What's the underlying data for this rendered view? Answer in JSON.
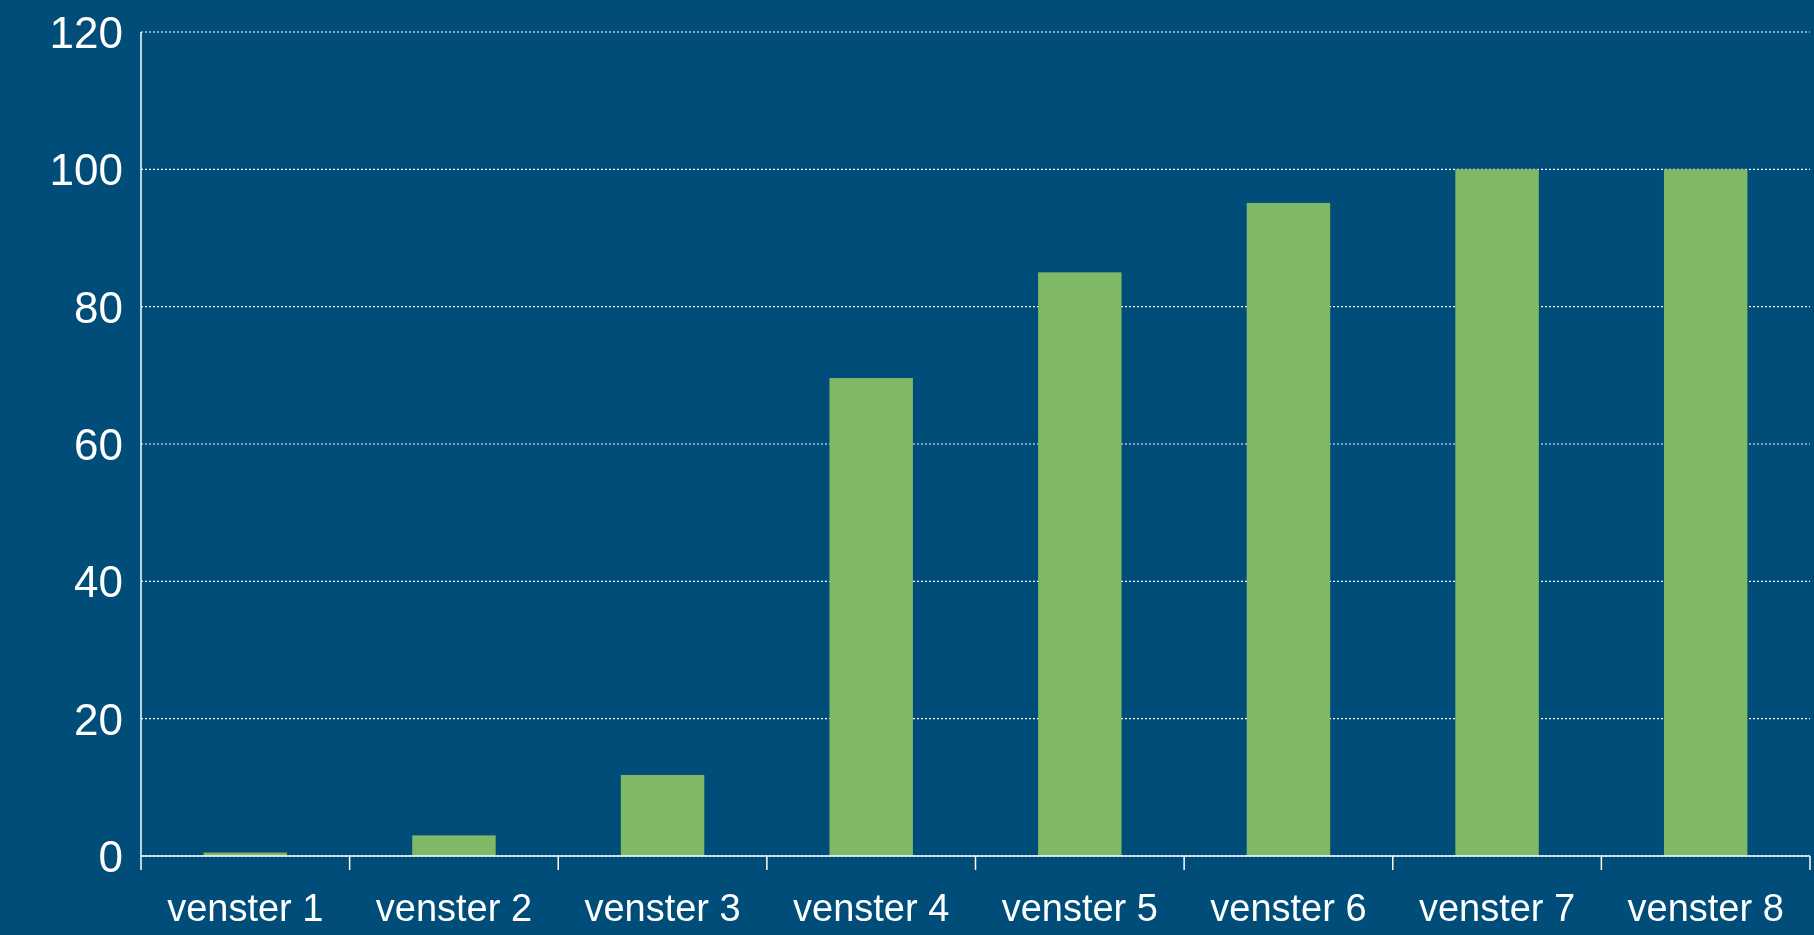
{
  "chart_data": {
    "type": "bar",
    "categories": [
      "venster 1",
      "venster 2",
      "venster 3",
      "venster 4",
      "venster 5",
      "venster 6",
      "venster 7",
      "venster 8"
    ],
    "values": [
      0.5,
      3,
      11.8,
      69.6,
      85,
      95.1,
      100,
      100
    ],
    "color": "#80b965",
    "ylim": [
      0,
      120
    ],
    "yticks": [
      0,
      20,
      40,
      60,
      80,
      100,
      120
    ],
    "grid": "y"
  }
}
